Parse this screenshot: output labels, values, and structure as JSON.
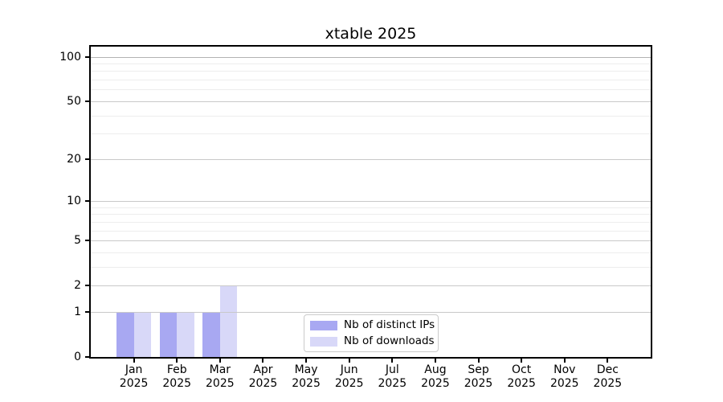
{
  "figure": {
    "title": "xtable 2025"
  },
  "chart_data": {
    "type": "bar",
    "title": "xtable 2025",
    "categories": [
      "Jan 2025",
      "Feb 2025",
      "Mar 2025",
      "Apr 2025",
      "May 2025",
      "Jun 2025",
      "Jul 2025",
      "Aug 2025",
      "Sep 2025",
      "Oct 2025",
      "Nov 2025",
      "Dec 2025"
    ],
    "series": [
      {
        "name": "Nb of distinct IPs",
        "color": "#a8a8f2",
        "values": [
          1,
          1,
          1,
          0,
          0,
          0,
          0,
          0,
          0,
          0,
          0,
          0
        ]
      },
      {
        "name": "Nb of downloads",
        "color": "#d8d8f8",
        "values": [
          1,
          1,
          2,
          0,
          0,
          0,
          0,
          0,
          0,
          0,
          0,
          0
        ]
      }
    ],
    "xlabel": "",
    "ylabel": "",
    "yscale": "log1p",
    "ylim": [
      0,
      117
    ],
    "y_major_ticks": [
      0,
      1,
      2,
      5,
      10,
      20,
      50,
      100
    ],
    "y_minor_gridlines": [
      3,
      4,
      6,
      7,
      8,
      9,
      30,
      40,
      60,
      70,
      80,
      90
    ],
    "grid": true,
    "legend_position": "lower center",
    "colors": {
      "major_grid": "#c9c9c9",
      "top_grid": "#b3b3b3",
      "minor_grid": "#ededed",
      "spine": "#000000",
      "tick": "#000000"
    }
  }
}
